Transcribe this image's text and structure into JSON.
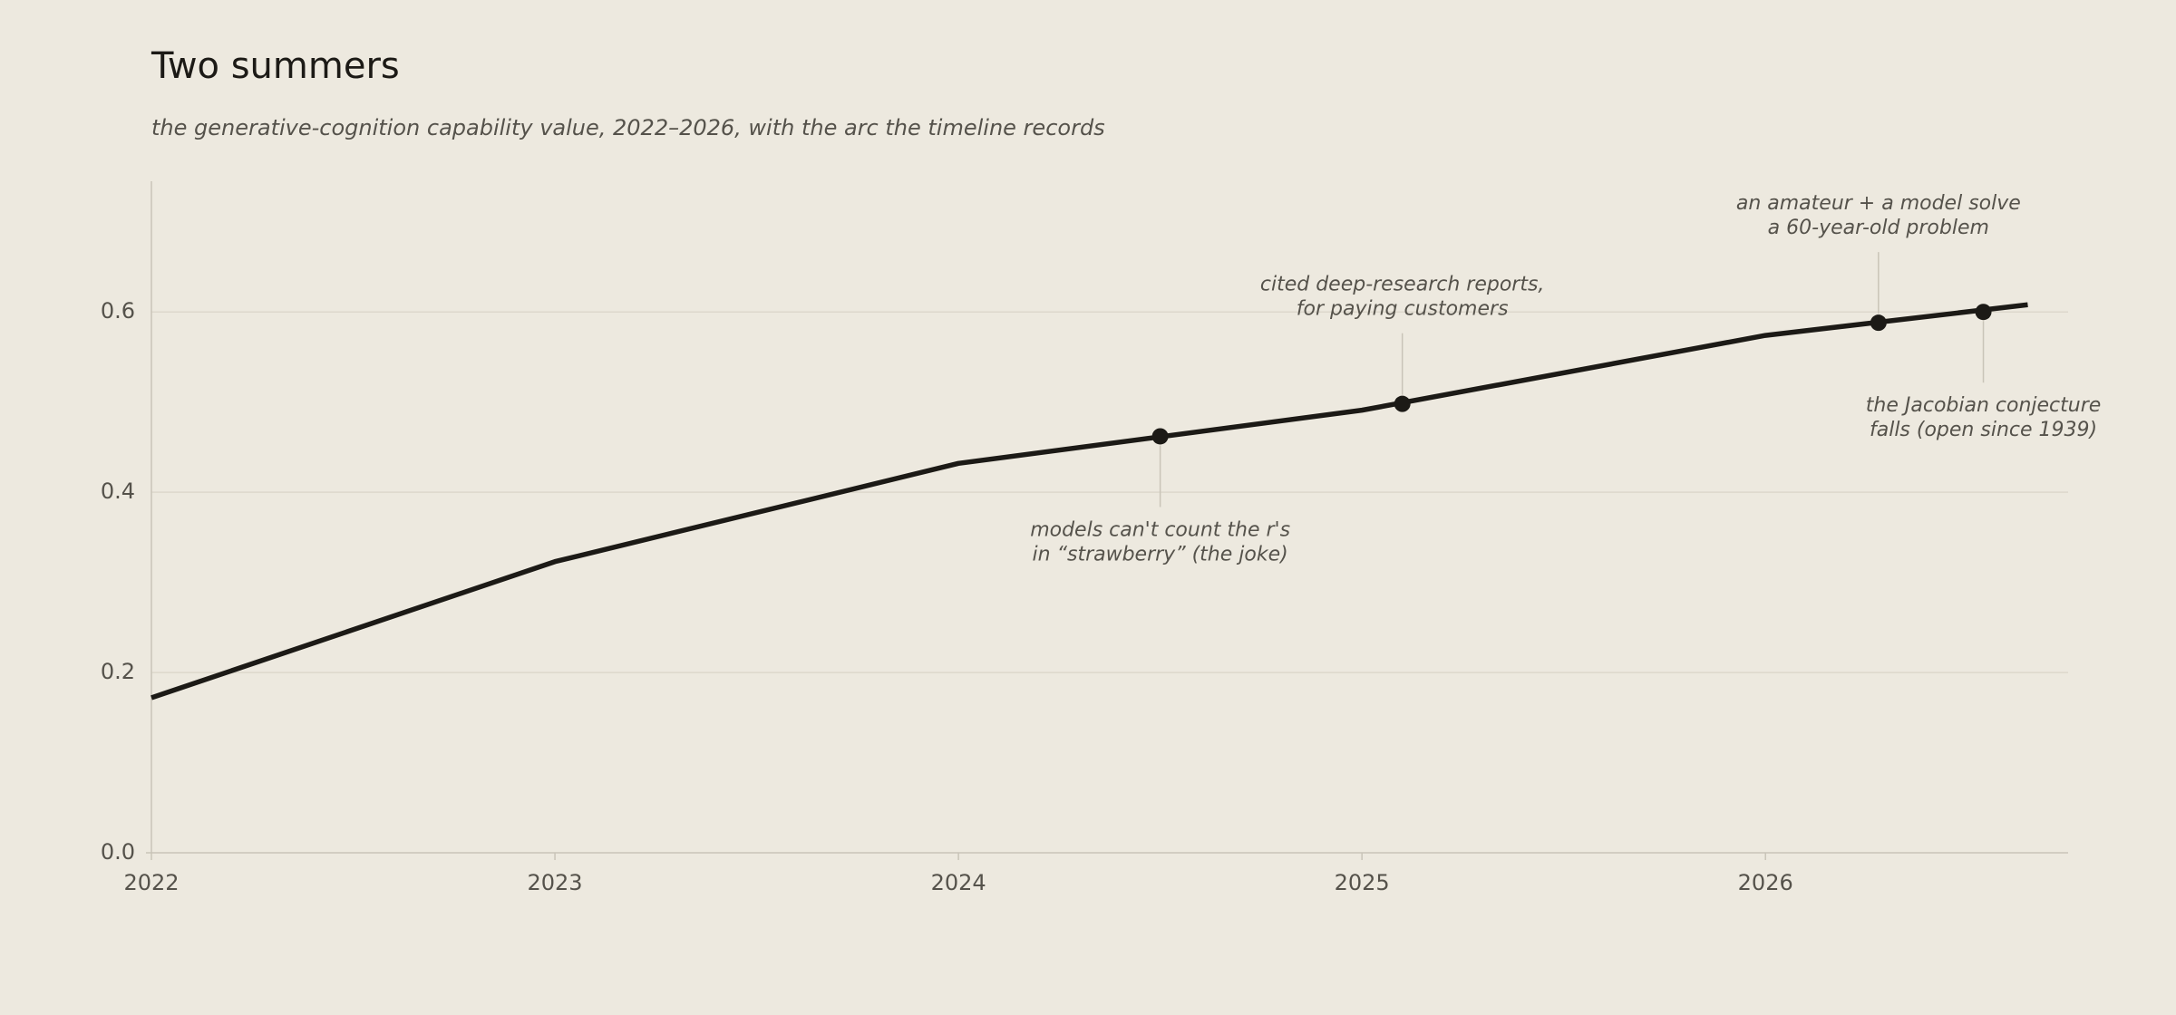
{
  "chart_data": {
    "type": "line",
    "title": "Two summers",
    "subtitle": "the generative-cognition capability value, 2022–2026, with the arc the timeline records",
    "series": [
      {
        "color": "#1c1a16",
        "x": [
          2022,
          2023,
          2024,
          2025,
          2026,
          2026.65
        ],
        "values": [
          0.172,
          0.323,
          0.432,
          0.491,
          0.574,
          0.608
        ]
      }
    ],
    "annotations": [
      {
        "x": 2024.5,
        "y": 0.462,
        "text": [
          "models can't count the r's",
          "in “strawberry” (the joke)"
        ]
      },
      {
        "x": 2025.1,
        "y": 0.498,
        "text": [
          "cited deep-research reports,",
          "for paying customers"
        ]
      },
      {
        "x": 2026.28,
        "y": 0.588,
        "text": [
          "an amateur + a model solve",
          "a 60-year-old problem"
        ]
      },
      {
        "x": 2026.54,
        "y": 0.6,
        "text": [
          "the Jacobian conjecture",
          "falls (open since 1939)"
        ]
      }
    ],
    "xlim": [
      2022,
      2026.75
    ],
    "xticks": [
      2022,
      2023,
      2024,
      2025,
      2026
    ],
    "ylim": [
      0,
      0.745
    ],
    "yticks": [
      {
        "value": 0,
        "label": "0.0"
      },
      0.2,
      0.4,
      0.6
    ],
    "grid": true
  }
}
